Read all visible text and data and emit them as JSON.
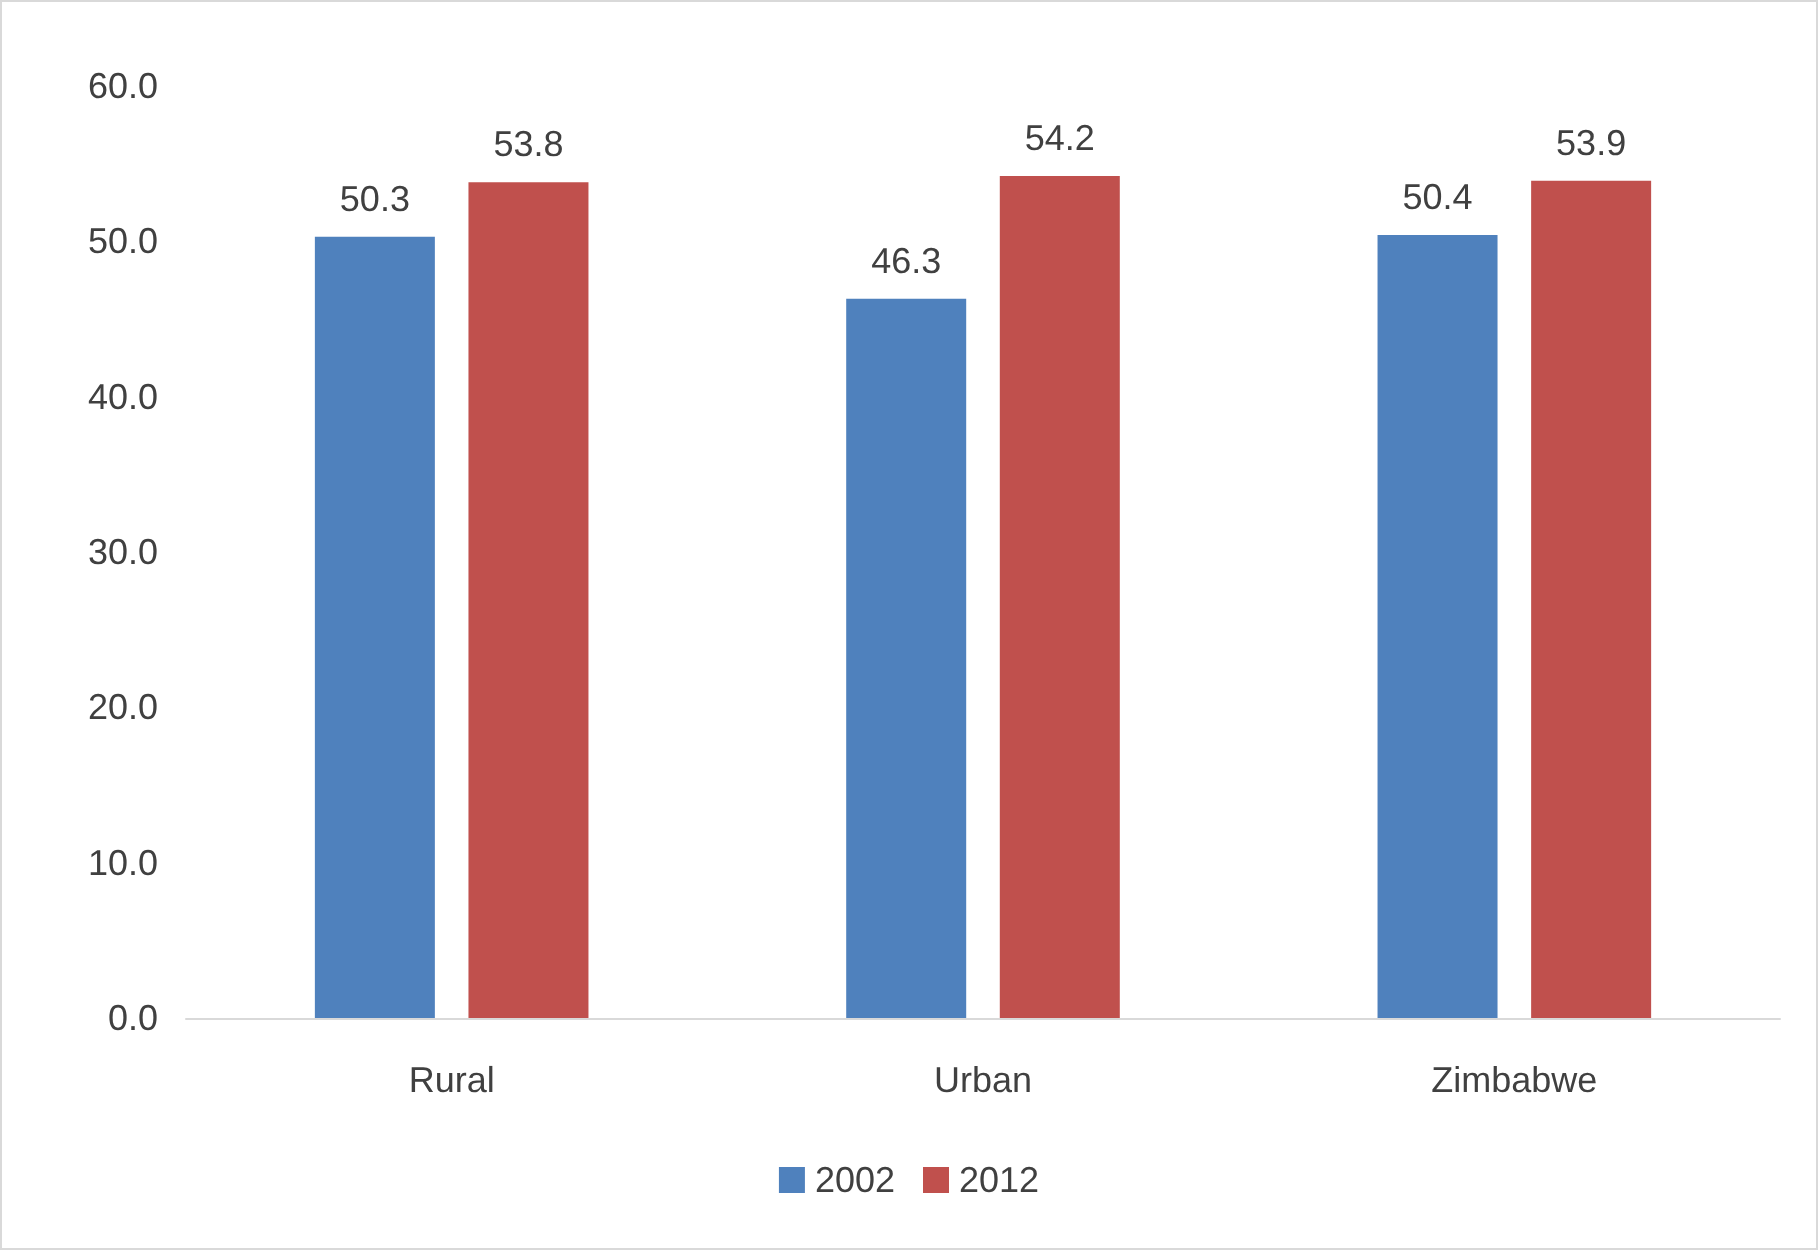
{
  "chart_data": {
    "type": "bar",
    "categories": [
      "Rural",
      "Urban",
      "Zimbabwe"
    ],
    "series": [
      {
        "name": "2002",
        "color": "#4f81bd",
        "values": [
          50.3,
          46.3,
          50.4
        ]
      },
      {
        "name": "2012",
        "color": "#c0504d",
        "values": [
          53.8,
          54.2,
          53.9
        ]
      }
    ],
    "ylim": [
      0,
      60
    ],
    "yticks": [
      {
        "value": 0,
        "label": "0.0"
      },
      {
        "value": 10,
        "label": "10.0"
      },
      {
        "value": 20,
        "label": "20.0"
      },
      {
        "value": 30,
        "label": "30.0"
      },
      {
        "value": 40,
        "label": "40.0"
      },
      {
        "value": 50,
        "label": "50.0"
      },
      {
        "value": 60,
        "label": "60.0"
      }
    ],
    "grid": false,
    "legend": "bottom",
    "data_labels": true
  }
}
